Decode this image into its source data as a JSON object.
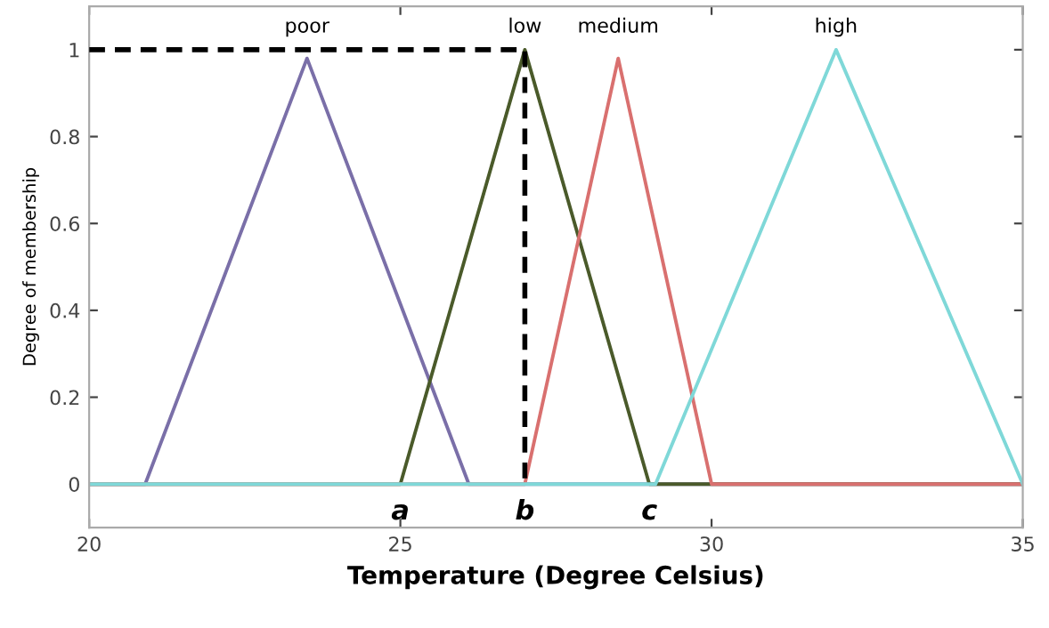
{
  "chart_data": {
    "type": "line",
    "xlabel": "Temperature (Degree Celsius)",
    "ylabel": "Degree of membership",
    "xlim": [
      20,
      35
    ],
    "ylim": [
      -0.1,
      1.1
    ],
    "xticks": [
      20,
      25,
      30,
      35
    ],
    "yticks": [
      0,
      0.2,
      0.4,
      0.6,
      0.8,
      1
    ],
    "grid": false,
    "legend": false,
    "series": [
      {
        "name": "poor",
        "color": "#7a6fa8",
        "x": [
          20,
          20.9,
          23.5,
          26.1,
          35
        ],
        "values": [
          0,
          0,
          0.98,
          0,
          0
        ]
      },
      {
        "name": "low",
        "color": "#4a5a2a",
        "x": [
          20,
          25,
          27,
          29,
          35
        ],
        "values": [
          0,
          0,
          1,
          0,
          0
        ]
      },
      {
        "name": "medium",
        "color": "#d9706f",
        "x": [
          20,
          27,
          28.5,
          30,
          35
        ],
        "values": [
          0,
          0,
          0.98,
          0,
          0
        ]
      },
      {
        "name": "high",
        "color": "#7fd8d8",
        "x": [
          20,
          29.1,
          32,
          35
        ],
        "values": [
          0,
          0,
          1,
          0
        ]
      },
      {
        "color": "#000000",
        "line_style": "dashed",
        "x": [
          20,
          27,
          27
        ],
        "values": [
          1,
          1,
          0
        ]
      }
    ],
    "annotations": [
      {
        "text": "a",
        "x": 25,
        "y": 0
      },
      {
        "text": "b",
        "x": 27,
        "y": 0
      },
      {
        "text": "c",
        "x": 29,
        "y": 0
      }
    ]
  }
}
